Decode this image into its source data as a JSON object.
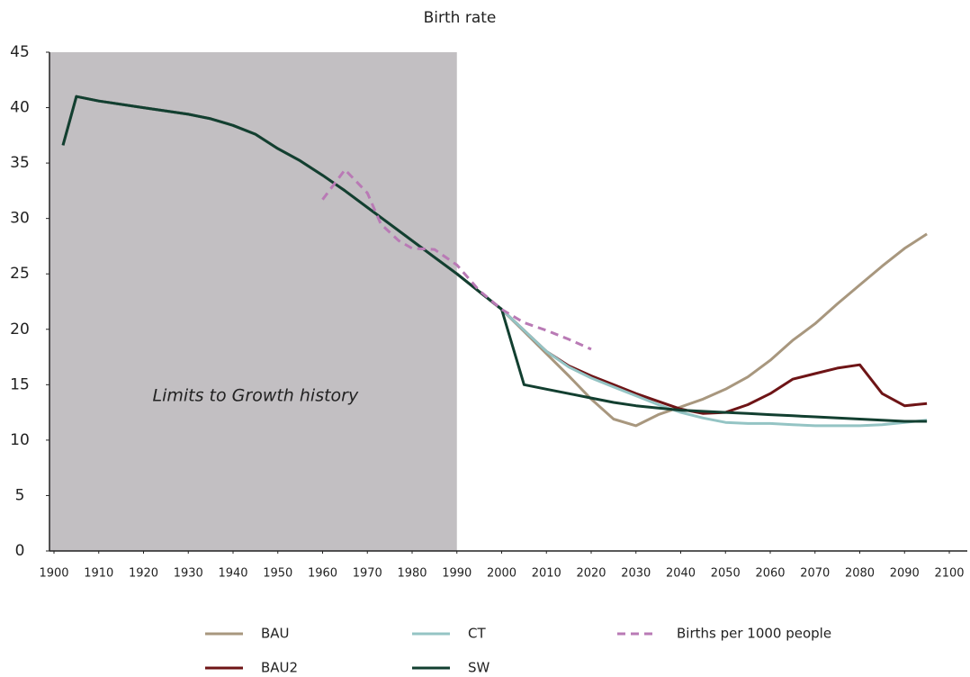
{
  "chart_data": {
    "type": "line",
    "title": "Birth rate",
    "annotation": "Limits to Growth history",
    "shaded_range": [
      1900,
      1990
    ],
    "shade_color": "#c2bfc2",
    "xlim": [
      1900,
      2100
    ],
    "xticks": [
      1900,
      1910,
      1920,
      1930,
      1940,
      1950,
      1960,
      1970,
      1980,
      1990,
      2000,
      2010,
      2020,
      2030,
      2040,
      2050,
      2060,
      2070,
      2080,
      2090,
      2100
    ],
    "ylim": [
      0,
      45
    ],
    "yticks": [
      0,
      5,
      10,
      15,
      20,
      25,
      30,
      35,
      40,
      45
    ],
    "x": [
      1902,
      1905,
      1910,
      1920,
      1930,
      1935,
      1940,
      1945,
      1950,
      1955,
      1960,
      1965,
      1970,
      1975,
      1980,
      1985,
      1990,
      1995,
      2000,
      2005,
      2010,
      2015,
      2020,
      2025,
      2030,
      2035,
      2040,
      2045,
      2050,
      2055,
      2060,
      2065,
      2070,
      2075,
      2080,
      2085,
      2090,
      2095
    ],
    "series": [
      {
        "name": "BAU",
        "color": "#a8977e",
        "values": [
          36.6,
          41,
          40.6,
          40,
          39.4,
          39,
          38.4,
          37.6,
          36.3,
          35.2,
          33.9,
          32.5,
          31,
          29.5,
          28,
          26.5,
          25,
          23.4,
          21.8,
          19.8,
          17.8,
          15.8,
          13.7,
          11.9,
          11.3,
          12.3,
          13,
          13.7,
          14.6,
          15.7,
          17.2,
          19,
          20.5,
          22.3,
          24,
          25.7,
          27.3,
          28.6
        ]
      },
      {
        "name": "BAU2",
        "color": "#6e1416",
        "values": [
          36.6,
          41,
          40.6,
          40,
          39.4,
          39,
          38.4,
          37.6,
          36.3,
          35.2,
          33.9,
          32.5,
          31,
          29.5,
          28,
          26.5,
          25,
          23.4,
          21.8,
          19.9,
          18,
          16.7,
          15.8,
          15,
          14.2,
          13.5,
          12.8,
          12.4,
          12.5,
          13.2,
          14.2,
          15.5,
          16,
          16.5,
          16.8,
          14.2,
          13.1,
          13.3
        ]
      },
      {
        "name": "CT",
        "color": "#94c4c4",
        "values": [
          36.6,
          41,
          40.6,
          40,
          39.4,
          39,
          38.4,
          37.6,
          36.3,
          35.2,
          33.9,
          32.5,
          31,
          29.5,
          28,
          26.5,
          25,
          23.4,
          21.8,
          19.9,
          18,
          16.6,
          15.6,
          14.8,
          14,
          13.2,
          12.5,
          12,
          11.6,
          11.5,
          11.5,
          11.4,
          11.3,
          11.3,
          11.3,
          11.4,
          11.6,
          11.8
        ]
      },
      {
        "name": "SW",
        "color": "#123f30",
        "values": [
          36.6,
          41,
          40.6,
          40,
          39.4,
          39,
          38.4,
          37.6,
          36.3,
          35.2,
          33.9,
          32.5,
          31,
          29.5,
          28,
          26.5,
          25,
          23.4,
          21.8,
          15,
          14.6,
          14.2,
          13.8,
          13.4,
          13.1,
          12.9,
          12.7,
          12.6,
          12.5,
          12.4,
          12.3,
          12.2,
          12.1,
          12,
          11.9,
          11.8,
          11.7,
          11.7
        ]
      },
      {
        "name": "Births per 1000 people",
        "color": "#b97ab5",
        "dashed": true,
        "x": [
          1960,
          1965,
          1970,
          1973,
          1977,
          1980,
          1985,
          1990,
          1995,
          2000,
          2005,
          2010,
          2015,
          2020
        ],
        "values": [
          31.7,
          34.4,
          32.3,
          29.5,
          28,
          27.3,
          27.2,
          25.8,
          23.5,
          21.8,
          20.6,
          19.9,
          19.1,
          18.2
        ]
      }
    ]
  }
}
